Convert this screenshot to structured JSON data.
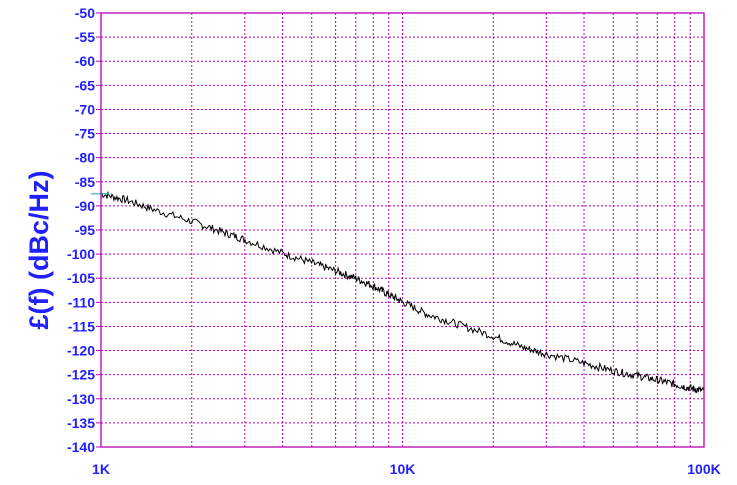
{
  "chart_data": {
    "type": "line",
    "title": "",
    "xlabel": "",
    "ylabel": "£(f) (dBc/Hz)",
    "x_scale": "log",
    "xlim": [
      1000,
      100000
    ],
    "ylim": [
      -140,
      -50
    ],
    "x_ticks": [
      {
        "value": 1000,
        "label": "1K"
      },
      {
        "value": 10000,
        "label": "10K"
      },
      {
        "value": 100000,
        "label": "100K"
      }
    ],
    "y_ticks": [
      -50,
      -55,
      -60,
      -65,
      -70,
      -75,
      -80,
      -85,
      -90,
      -95,
      -100,
      -105,
      -110,
      -115,
      -120,
      -125,
      -130,
      -135,
      -140
    ],
    "y_tick_labels": [
      "-50",
      "-55",
      "-60",
      "-65",
      "-70",
      "-75",
      "-80",
      "-85",
      "-90",
      "-95",
      "-100",
      "-105",
      "-110",
      "-115",
      "-120",
      "-125",
      "-130",
      "-135",
      "-140"
    ],
    "grid": true,
    "series": [
      {
        "color": "#000000",
        "x": [
          1000,
          1200,
          1500,
          2000,
          2500,
          3000,
          4000,
          5000,
          6000,
          7000,
          8000,
          9000,
          10000,
          12000,
          15000,
          20000,
          25000,
          30000,
          40000,
          50000,
          60000,
          70000,
          80000,
          90000,
          100000
        ],
        "y": [
          -87.5,
          -88.7,
          -90.8,
          -93.2,
          -95.3,
          -97,
          -99.8,
          -101.8,
          -103.5,
          -105,
          -106.6,
          -108.4,
          -109.9,
          -112.4,
          -114.4,
          -117,
          -119.3,
          -120.7,
          -122.6,
          -124.2,
          -125.2,
          -126.1,
          -127,
          -127.8,
          -128.4
        ]
      }
    ]
  },
  "colors": {
    "axis_text": "#1f1fff",
    "grid": "#b700b7",
    "trace": "#000000",
    "frame": "#b700b7",
    "trace_start_marker": "#22b8b8"
  }
}
